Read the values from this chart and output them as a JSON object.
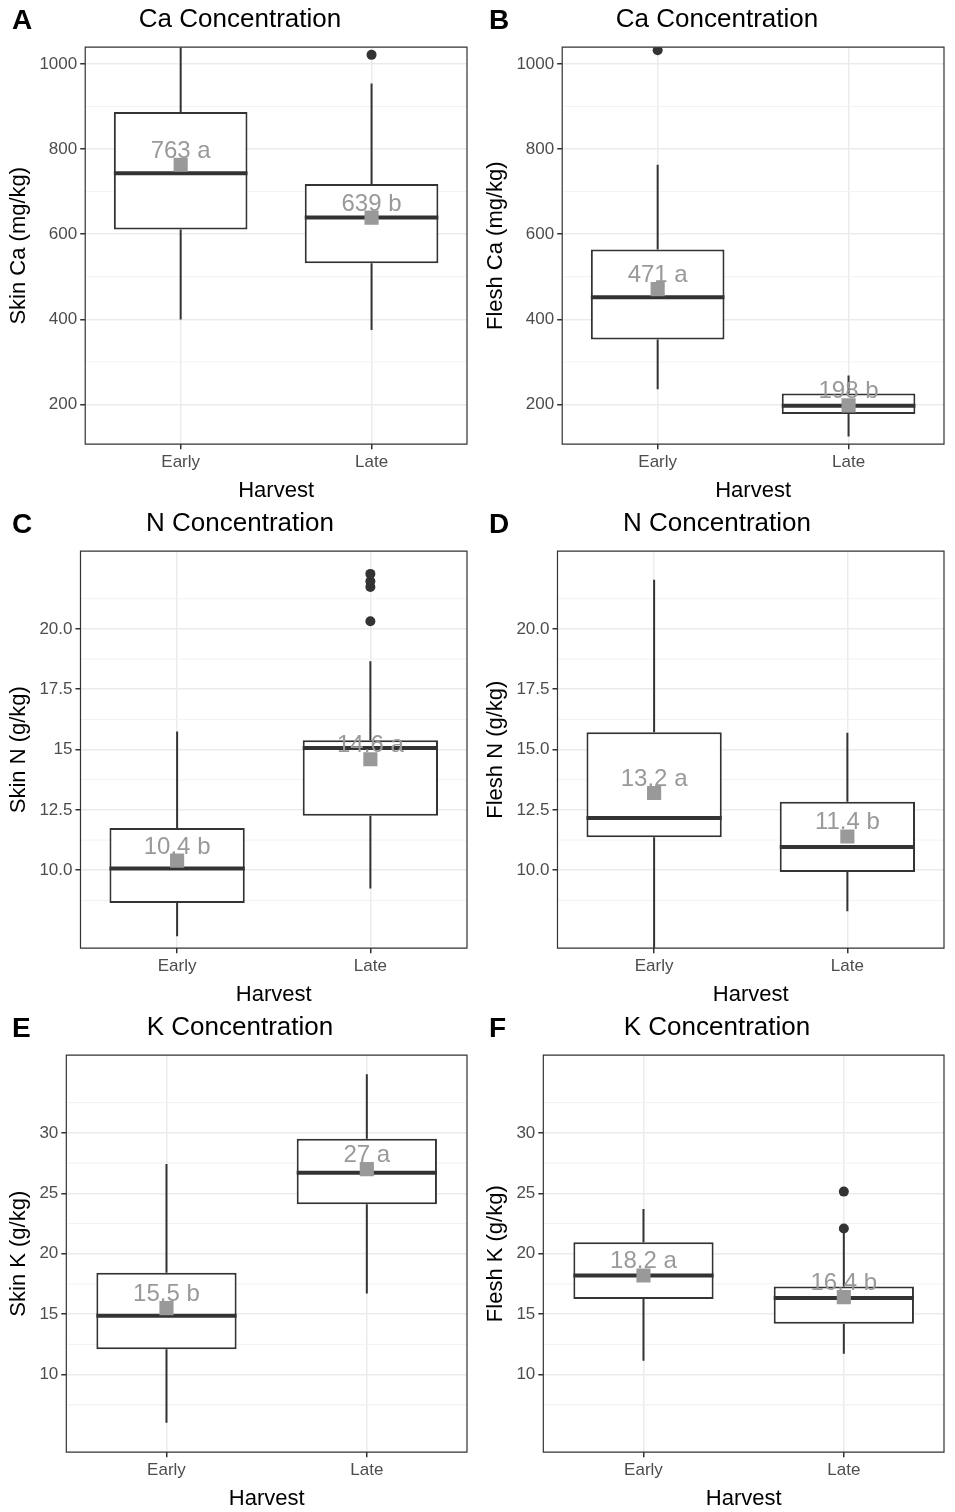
{
  "chart_data": [
    {
      "type": "box",
      "title": "Ca Concentration",
      "xlabel": "Harvest",
      "ylabel": "Skin Ca (mg/kg)",
      "annotations": [
        "A"
      ],
      "categories": [
        "Early",
        "Late"
      ],
      "boxes": [
        {
          "low": 400,
          "q1": 611,
          "median": 743,
          "q3": 887,
          "high": 1039,
          "mean": 763
        },
        {
          "low": 375,
          "q1": 532,
          "median": 639,
          "q3": 718,
          "high": 954,
          "mean": 639,
          "outliers": [
            1021
          ]
        }
      ],
      "value_labels": [
        "763 a",
        "639 b"
      ],
      "ylim": [
        107,
        1039
      ],
      "yticks": [
        200,
        400,
        600,
        800,
        1000
      ],
      "grid": true
    },
    {
      "type": "box",
      "title": "Ca Concentration",
      "xlabel": "Harvest",
      "ylabel": "Flesh Ca (mg/kg)",
      "annotations": [
        "B"
      ],
      "categories": [
        "Early",
        "Late"
      ],
      "boxes": [
        {
          "low": 236,
          "q1": 353,
          "median": 452,
          "q3": 564,
          "high": 763,
          "mean": 471,
          "outliers": [
            1032
          ]
        },
        {
          "low": 125,
          "q1": 178,
          "median": 197,
          "q3": 226,
          "high": 268,
          "mean": 198
        }
      ],
      "value_labels": [
        "471 a",
        "198 b"
      ],
      "ylim": [
        107,
        1039
      ],
      "yticks": [
        200,
        400,
        600,
        800,
        1000
      ],
      "grid": true
    },
    {
      "type": "box",
      "title": "N Concentration",
      "xlabel": "Harvest",
      "ylabel": "Skin N (g/kg)",
      "annotations": [
        "C"
      ],
      "categories": [
        "Early",
        "Late"
      ],
      "boxes": [
        {
          "low": 7.27,
          "q1": 8.64,
          "median": 10.07,
          "q3": 11.75,
          "high": 15.75,
          "mean": 10.4
        },
        {
          "low": 9.24,
          "q1": 12.26,
          "median": 15.07,
          "q3": 15.39,
          "high": 18.66,
          "mean": 14.6,
          "outliers": [
            22.28,
            21.97,
            21.74,
            20.32
          ]
        }
      ],
      "value_labels": [
        "10.4 b",
        "14.6 a"
      ],
      "ylim": [
        6.77,
        23.22
      ],
      "yticks": [
        {
          "value": 10,
          "label": "10.0"
        },
        12.5,
        15,
        17.5,
        {
          "value": 20,
          "label": "20.0"
        }
      ],
      "grid": true
    },
    {
      "type": "box",
      "title": "N Concentration",
      "xlabel": "Harvest",
      "ylabel": "Flesh N (g/kg)",
      "annotations": [
        "D"
      ],
      "categories": [
        "Early",
        "Late"
      ],
      "boxes": [
        {
          "low": 6.77,
          "q1": 11.37,
          "median": 12.16,
          "q3": 15.72,
          "high": 22.04,
          "mean": 13.2
        },
        {
          "low": 8.3,
          "q1": 9.93,
          "median": 10.96,
          "q3": 12.84,
          "high": 15.7,
          "mean": 11.4
        }
      ],
      "value_labels": [
        "13.2 a",
        "11.4 b"
      ],
      "ylim": [
        6.77,
        23.22
      ],
      "yticks": [
        {
          "value": 10,
          "label": "10.0"
        },
        12.5,
        {
          "value": 15,
          "label": "15.0"
        },
        17.5,
        {
          "value": 20,
          "label": "20.0"
        }
      ],
      "grid": true
    },
    {
      "type": "box",
      "title": "K Concentration",
      "xlabel": "Harvest",
      "ylabel": "Skin K (g/kg)",
      "annotations": [
        "E"
      ],
      "categories": [
        "Early",
        "Late"
      ],
      "boxes": [
        {
          "low": 6.0,
          "q1": 12.09,
          "median": 14.86,
          "q3": 18.43,
          "high": 27.43,
          "mean": 15.5
        },
        {
          "low": 16.71,
          "q1": 24.09,
          "median": 26.71,
          "q3": 29.51,
          "high": 34.86,
          "mean": 27
        }
      ],
      "value_labels": [
        "15.5 b",
        "27 a"
      ],
      "ylim": [
        3.57,
        36.43
      ],
      "yticks": [
        10,
        15,
        20,
        25,
        30
      ],
      "grid": true
    },
    {
      "type": "box",
      "title": "K Concentration",
      "xlabel": "Harvest",
      "ylabel": "Flesh K (g/kg)",
      "annotations": [
        "F"
      ],
      "categories": [
        "Early",
        "Late"
      ],
      "boxes": [
        {
          "low": 11.14,
          "q1": 16.26,
          "median": 18.2,
          "q3": 20.94,
          "high": 23.71,
          "mean": 18.2
        },
        {
          "low": 11.71,
          "q1": 14.2,
          "median": 16.34,
          "q3": 17.29,
          "high": 21.9,
          "mean": 16.4,
          "outliers": [
            25.14,
            22.09
          ]
        }
      ],
      "value_labels": [
        "18.2 a",
        "16.4 b"
      ],
      "ylim": [
        3.57,
        36.43
      ],
      "yticks": [
        10,
        15,
        20,
        25,
        30
      ],
      "grid": true
    }
  ]
}
